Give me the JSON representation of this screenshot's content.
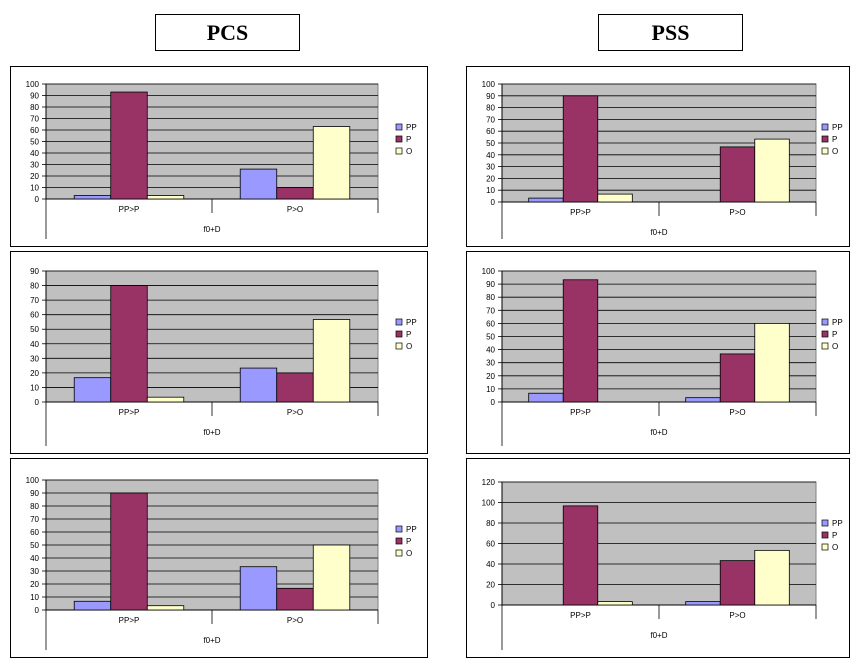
{
  "titles": {
    "left": "PCS",
    "right": "PSS"
  },
  "colors": {
    "PP": "#9999ff",
    "P": "#993366",
    "O": "#ffffcc",
    "plot_bg": "#c0c0c0",
    "grid": "#000000"
  },
  "chart_data": [
    {
      "type": "bar",
      "xlabel": "f0+D",
      "categories": [
        "PP>P",
        "P>O"
      ],
      "ylim": [
        0,
        100
      ],
      "yticks": [
        0,
        10,
        20,
        30,
        40,
        50,
        60,
        70,
        80,
        90,
        100
      ],
      "series": [
        {
          "name": "PP",
          "values": [
            3,
            26
          ]
        },
        {
          "name": "P",
          "values": [
            93,
            10
          ]
        },
        {
          "name": "O",
          "values": [
            3,
            63
          ]
        }
      ]
    },
    {
      "type": "bar",
      "xlabel": "f0+D",
      "categories": [
        "PP>P",
        "P>O"
      ],
      "ylim": [
        0,
        90
      ],
      "yticks": [
        0,
        10,
        20,
        30,
        40,
        50,
        60,
        70,
        80,
        90
      ],
      "series": [
        {
          "name": "PP",
          "values": [
            16.7,
            23.3
          ]
        },
        {
          "name": "P",
          "values": [
            80,
            20
          ]
        },
        {
          "name": "O",
          "values": [
            3.3,
            56.7
          ]
        }
      ]
    },
    {
      "type": "bar",
      "xlabel": "f0+D",
      "categories": [
        "PP>P",
        "P>O"
      ],
      "ylim": [
        0,
        100
      ],
      "yticks": [
        0,
        10,
        20,
        30,
        40,
        50,
        60,
        70,
        80,
        90,
        100
      ],
      "series": [
        {
          "name": "PP",
          "values": [
            6.7,
            33.3
          ]
        },
        {
          "name": "P",
          "values": [
            90,
            16.7
          ]
        },
        {
          "name": "O",
          "values": [
            3.3,
            50
          ]
        }
      ]
    },
    {
      "type": "bar",
      "xlabel": "f0+D",
      "categories": [
        "PP>P",
        "P>O"
      ],
      "ylim": [
        0,
        100
      ],
      "yticks": [
        0,
        10,
        20,
        30,
        40,
        50,
        60,
        70,
        80,
        90,
        100
      ],
      "series": [
        {
          "name": "PP",
          "values": [
            3.3,
            0
          ]
        },
        {
          "name": "P",
          "values": [
            90,
            46.7
          ]
        },
        {
          "name": "O",
          "values": [
            6.7,
            53.3
          ]
        }
      ]
    },
    {
      "type": "bar",
      "xlabel": "f0+D",
      "categories": [
        "PP>P",
        "P>O"
      ],
      "ylim": [
        0,
        100
      ],
      "yticks": [
        0,
        10,
        20,
        30,
        40,
        50,
        60,
        70,
        80,
        90,
        100
      ],
      "series": [
        {
          "name": "PP",
          "values": [
            6.7,
            3.3
          ]
        },
        {
          "name": "P",
          "values": [
            93.3,
            36.7
          ]
        },
        {
          "name": "O",
          "values": [
            0,
            60
          ]
        }
      ]
    },
    {
      "type": "bar",
      "xlabel": "f0+D",
      "categories": [
        "PP>P",
        "P>O"
      ],
      "ylim": [
        0,
        120
      ],
      "yticks": [
        0,
        20,
        40,
        60,
        80,
        100,
        120
      ],
      "series": [
        {
          "name": "PP",
          "values": [
            0,
            3.3
          ]
        },
        {
          "name": "P",
          "values": [
            96.7,
            43.3
          ]
        },
        {
          "name": "O",
          "values": [
            3.3,
            53.3
          ]
        }
      ]
    }
  ]
}
